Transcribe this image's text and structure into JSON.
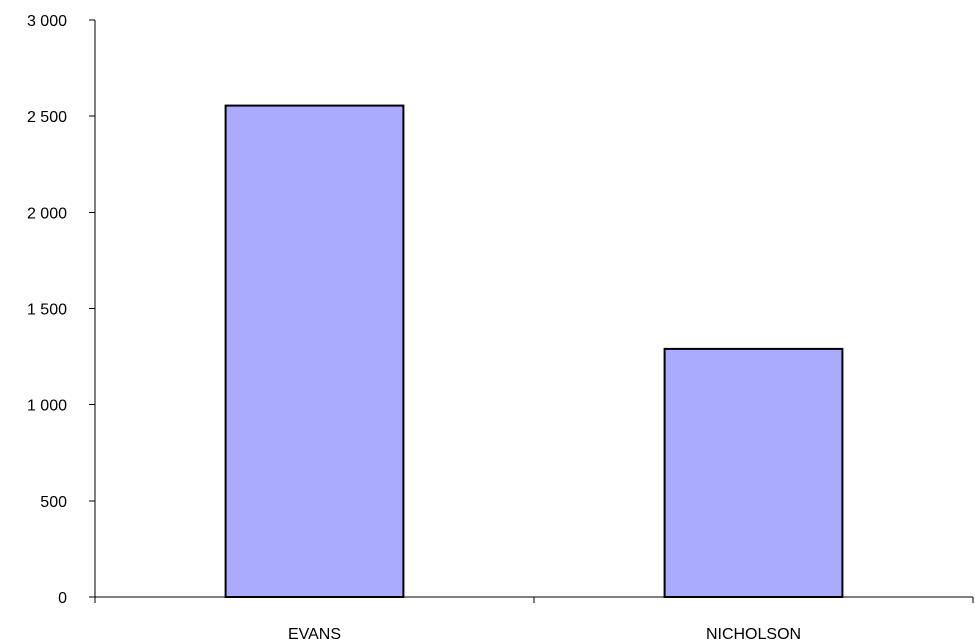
{
  "chart_data": {
    "type": "bar",
    "categories": [
      "EVANS",
      "NICHOLSON"
    ],
    "values": [
      2555,
      1290
    ],
    "ylim": [
      0,
      3000
    ],
    "yticks": [
      0,
      500,
      1000,
      1500,
      2000,
      2500,
      3000
    ],
    "ytick_labels": [
      "0",
      "500",
      "1 000",
      "1 500",
      "2 000",
      "2 500",
      "3 000"
    ],
    "title": "",
    "xlabel": "",
    "ylabel": "",
    "grid": false,
    "legend": "none",
    "colors": {
      "bar_fill": "#aaaaff",
      "bar_stroke": "#000000",
      "axis": "#000000"
    }
  }
}
